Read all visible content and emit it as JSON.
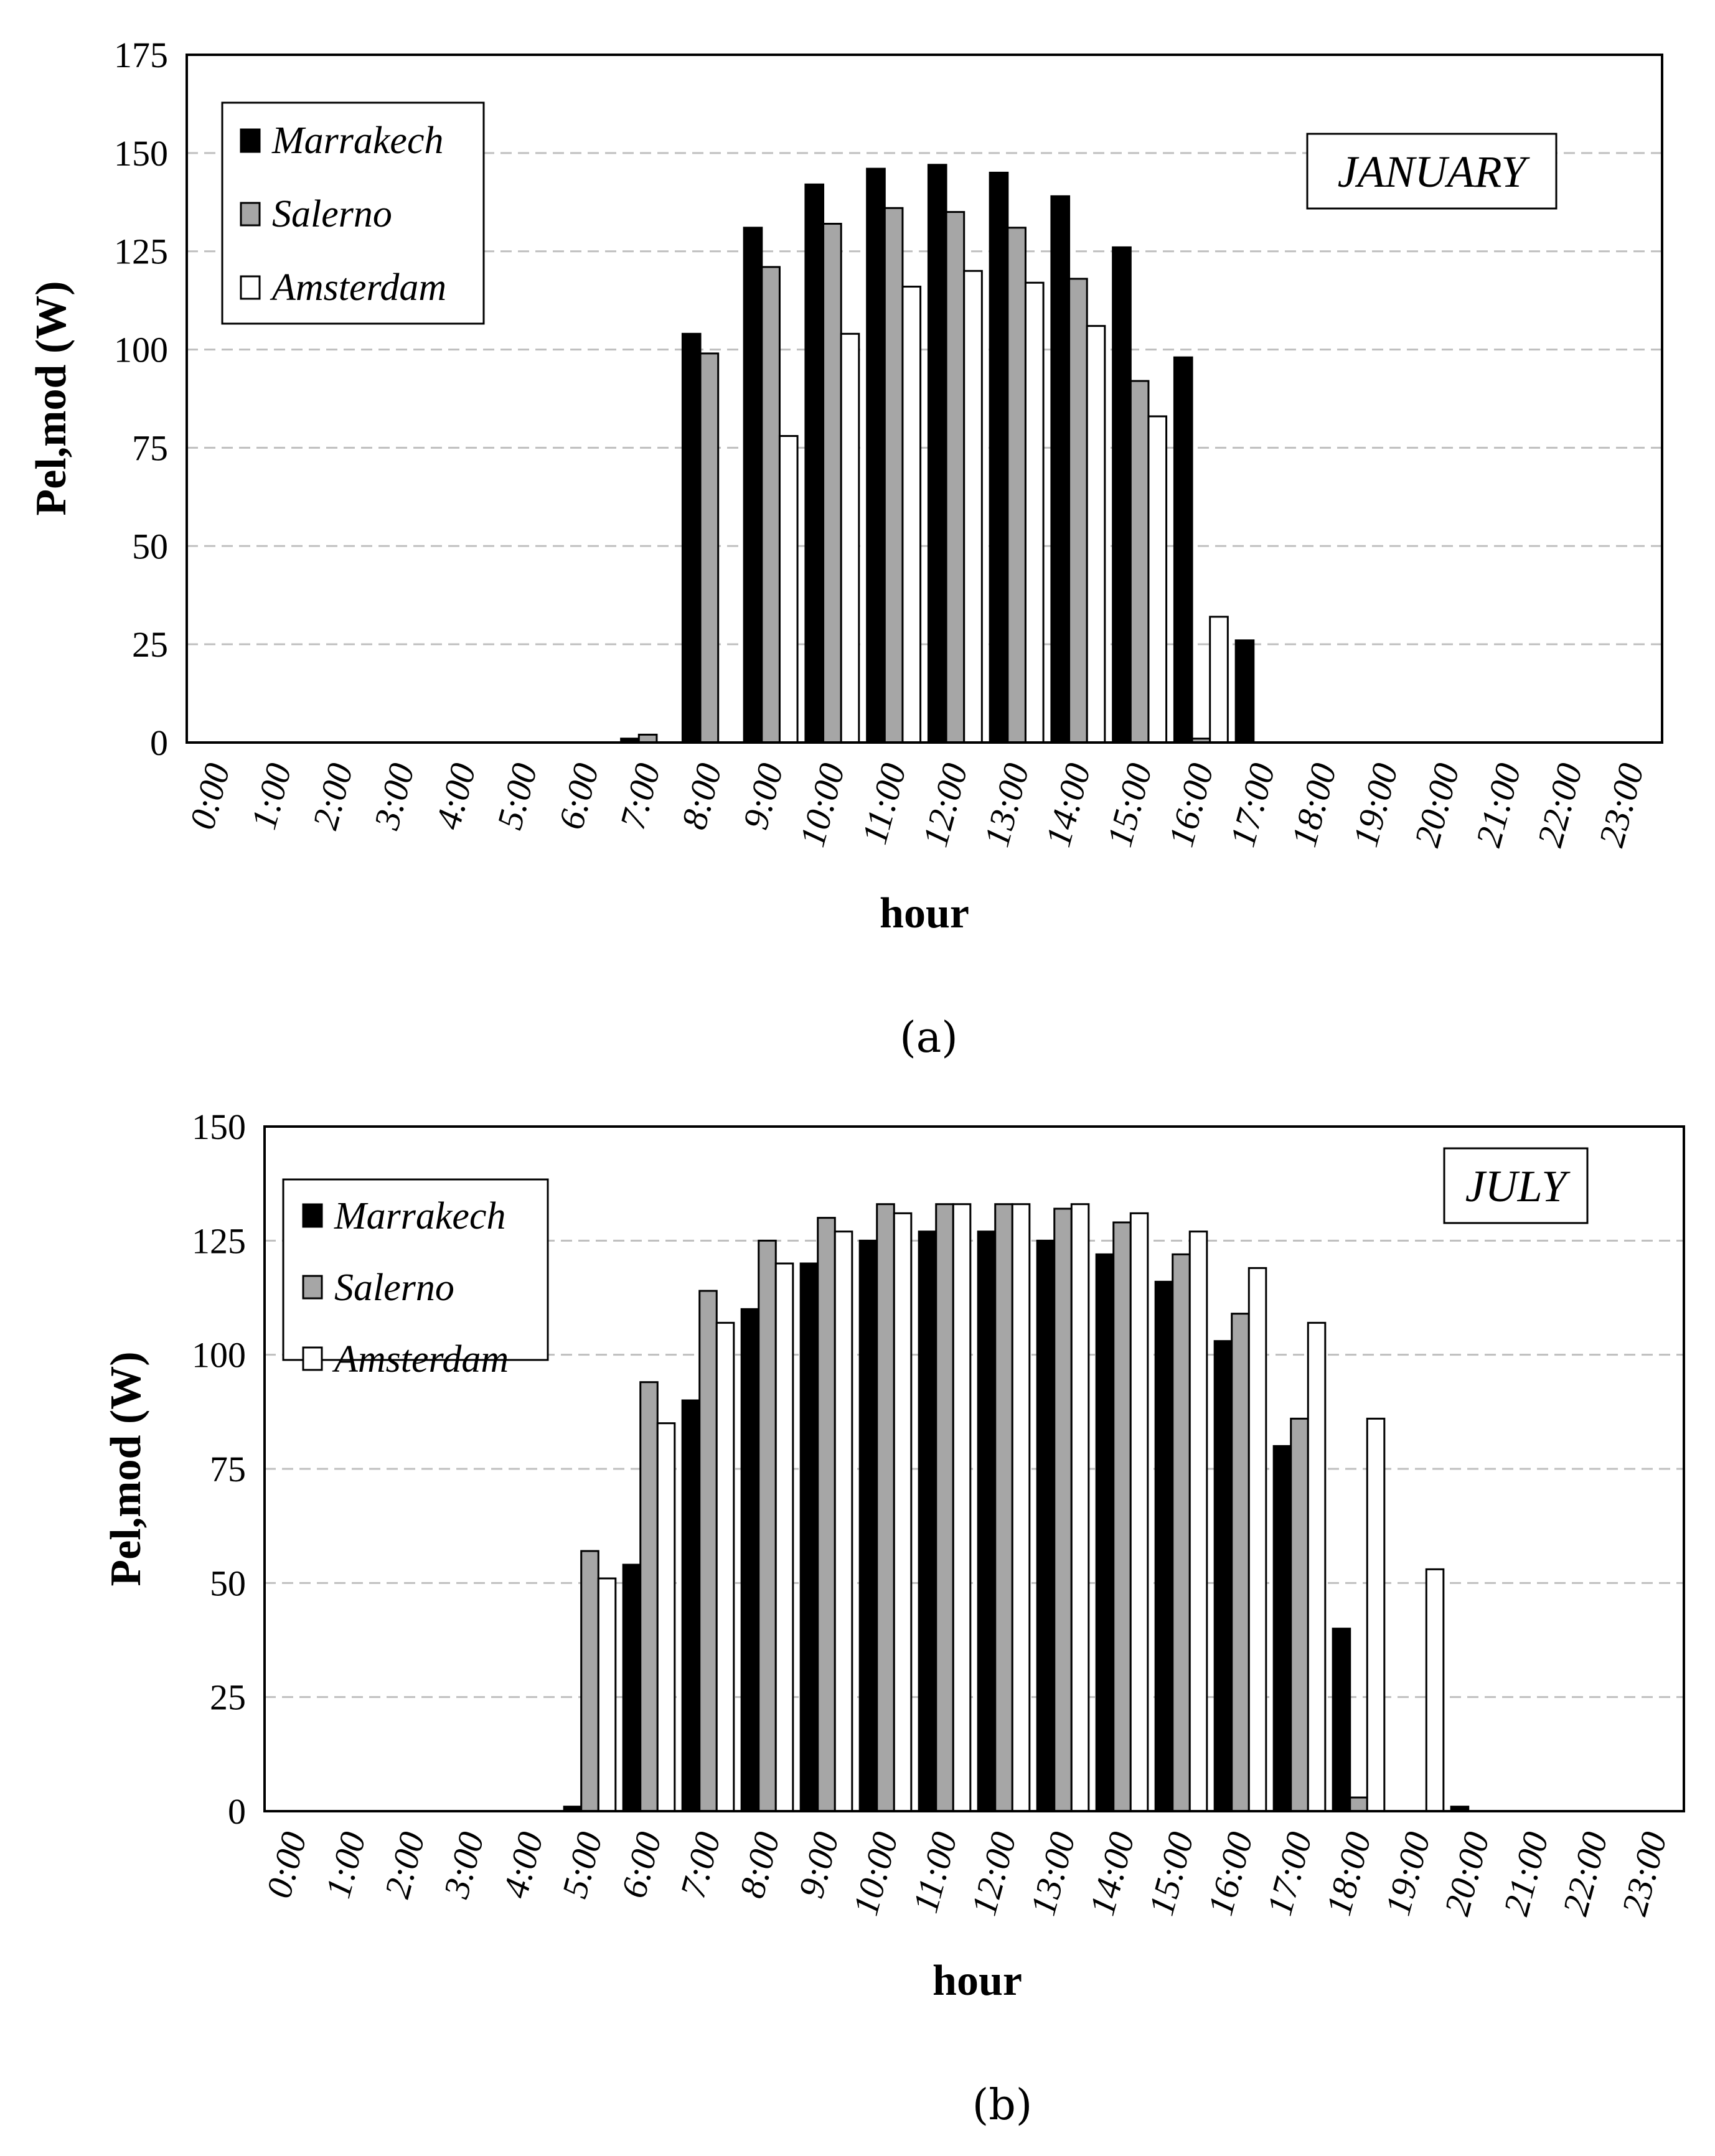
{
  "chart_data": [
    {
      "type": "bar",
      "panel_label": "(a)",
      "annotation": "JANUARY",
      "xlabel": "hour",
      "ylabel": "Pel,mod (W)",
      "ylim": [
        0,
        175
      ],
      "yticks": [
        0,
        25,
        50,
        75,
        100,
        125,
        150,
        175
      ],
      "grid": "horizontal dashed",
      "legend": "top-left",
      "categories": [
        "0:00",
        "1:00",
        "2:00",
        "3:00",
        "4:00",
        "5:00",
        "6:00",
        "7:00",
        "8:00",
        "9:00",
        "10:00",
        "11:00",
        "12:00",
        "13:00",
        "14:00",
        "15:00",
        "16:00",
        "17:00",
        "18:00",
        "19:00",
        "20:00",
        "21:00",
        "22:00",
        "23:00"
      ],
      "series": [
        {
          "name": "Marrakech",
          "color": "#000000",
          "values": [
            0,
            0,
            0,
            0,
            0,
            0,
            0,
            1,
            104,
            131,
            142,
            146,
            147,
            145,
            139,
            126,
            98,
            26,
            0,
            0,
            0,
            0,
            0,
            0
          ]
        },
        {
          "name": "Salerno",
          "color": "#a6a6a6",
          "values": [
            0,
            0,
            0,
            0,
            0,
            0,
            0,
            2,
            99,
            121,
            132,
            136,
            135,
            131,
            118,
            92,
            1,
            0,
            0,
            0,
            0,
            0,
            0,
            0
          ]
        },
        {
          "name": "Amsterdam",
          "color": "#ffffff",
          "values": [
            0,
            0,
            0,
            0,
            0,
            0,
            0,
            0,
            0,
            78,
            104,
            116,
            120,
            117,
            106,
            83,
            32,
            0,
            0,
            0,
            0,
            0,
            0,
            0
          ]
        }
      ]
    },
    {
      "type": "bar",
      "panel_label": "(b)",
      "annotation": "JULY",
      "xlabel": "hour",
      "ylabel": "Pel,mod (W)",
      "ylim": [
        0,
        150
      ],
      "yticks": [
        0,
        25,
        50,
        75,
        100,
        125,
        150
      ],
      "grid": "horizontal dashed",
      "legend": "top-left",
      "categories": [
        "0:00",
        "1:00",
        "2:00",
        "3:00",
        "4:00",
        "5:00",
        "6:00",
        "7:00",
        "8:00",
        "9:00",
        "10:00",
        "11:00",
        "12:00",
        "13:00",
        "14:00",
        "15:00",
        "16:00",
        "17:00",
        "18:00",
        "19:00",
        "20:00",
        "21:00",
        "22:00",
        "23:00"
      ],
      "series": [
        {
          "name": "Marrakech",
          "color": "#000000",
          "values": [
            0,
            0,
            0,
            0,
            0,
            1,
            54,
            90,
            110,
            120,
            125,
            127,
            127,
            125,
            122,
            116,
            103,
            80,
            40,
            0,
            1,
            0,
            0,
            0
          ]
        },
        {
          "name": "Salerno",
          "color": "#a6a6a6",
          "values": [
            0,
            0,
            0,
            0,
            0,
            57,
            94,
            114,
            125,
            130,
            133,
            133,
            133,
            132,
            129,
            122,
            109,
            86,
            3,
            0,
            0,
            0,
            0,
            0
          ]
        },
        {
          "name": "Amsterdam",
          "color": "#ffffff",
          "values": [
            0,
            0,
            0,
            0,
            0,
            51,
            85,
            107,
            120,
            127,
            131,
            133,
            133,
            133,
            131,
            127,
            119,
            107,
            86,
            53,
            0,
            0,
            0,
            0
          ]
        }
      ]
    }
  ]
}
